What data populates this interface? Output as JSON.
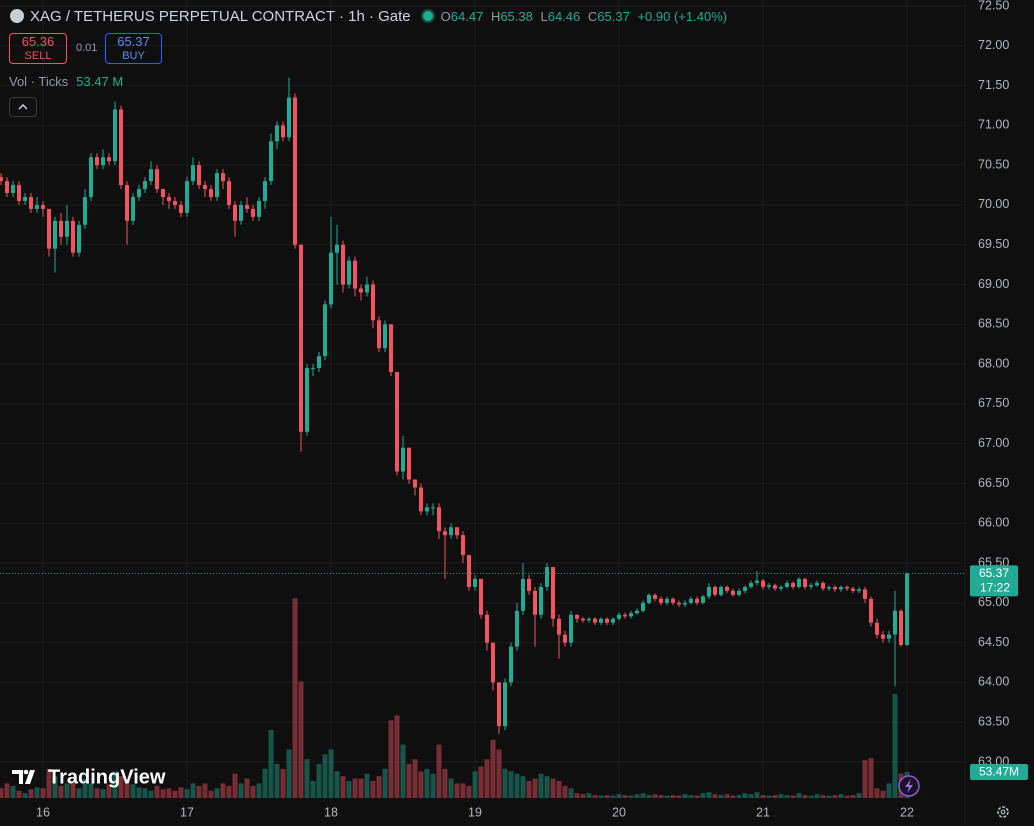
{
  "chart_data": {
    "type": "candlestick",
    "header": {
      "symbol": "XAG / TETHERUS PERPETUAL CONTRACT · 1h · Gate",
      "o_label": "O",
      "open": 64.47,
      "h_label": "H",
      "high": 65.38,
      "l_label": "L",
      "low": 64.46,
      "c_label": "C",
      "close": 65.37,
      "change": "+0.90 (+1.40%)"
    },
    "trade": {
      "sell_price": 65.36,
      "sell_label": "SELL",
      "spread": 0.01,
      "buy_price": 65.37,
      "buy_label": "BUY"
    },
    "volume_legend": {
      "name": "Vol · Ticks",
      "value": "53.47 M"
    },
    "price_tag": {
      "price": 65.37,
      "countdown": "17:22"
    },
    "volume_tag": "53.47M",
    "logo": "TradingView",
    "up_color": "#22ab94",
    "down_color": "#f7525f",
    "grid": true,
    "categories": [
      null,
      null,
      null,
      null,
      null,
      null,
      null,
      "16",
      null,
      null,
      null,
      null,
      null,
      null,
      null,
      null,
      null,
      null,
      null,
      null,
      null,
      null,
      null,
      null,
      null,
      null,
      null,
      null,
      null,
      null,
      null,
      "17",
      null,
      null,
      null,
      null,
      null,
      null,
      null,
      null,
      null,
      null,
      null,
      null,
      null,
      null,
      null,
      null,
      null,
      null,
      null,
      null,
      null,
      null,
      null,
      "18",
      null,
      null,
      null,
      null,
      null,
      null,
      null,
      null,
      null,
      null,
      null,
      null,
      null,
      null,
      null,
      null,
      null,
      null,
      null,
      null,
      null,
      null,
      null,
      "19",
      null,
      null,
      null,
      null,
      null,
      null,
      null,
      null,
      null,
      null,
      null,
      null,
      null,
      null,
      null,
      null,
      null,
      null,
      null,
      null,
      null,
      null,
      null,
      "20",
      null,
      null,
      null,
      null,
      null,
      null,
      null,
      null,
      null,
      null,
      null,
      null,
      null,
      null,
      null,
      null,
      null,
      null,
      null,
      null,
      null,
      null,
      null,
      "21",
      null,
      null,
      null,
      null,
      null,
      null,
      null,
      null,
      null,
      null,
      null,
      null,
      null,
      null,
      null,
      null,
      null,
      null,
      null,
      null,
      null,
      null,
      null,
      "22"
    ],
    "open": [
      70.35,
      70.3,
      70.15,
      70.25,
      70.05,
      70.1,
      69.95,
      70.0,
      69.95,
      69.45,
      69.8,
      69.6,
      69.8,
      69.4,
      69.75,
      70.1,
      70.6,
      70.5,
      70.6,
      70.55,
      71.2,
      70.25,
      69.8,
      70.1,
      70.2,
      70.3,
      70.45,
      70.2,
      70.1,
      70.05,
      70.0,
      69.9,
      70.3,
      70.5,
      70.25,
      70.2,
      70.1,
      70.4,
      70.3,
      70.0,
      69.8,
      70.0,
      69.95,
      69.85,
      70.05,
      70.3,
      70.8,
      71.0,
      70.85,
      71.35,
      69.5,
      67.15,
      67.95,
      67.95,
      68.1,
      68.75,
      69.4,
      69.5,
      69.0,
      69.3,
      68.95,
      68.9,
      69.0,
      68.55,
      68.2,
      68.5,
      67.9,
      66.65,
      66.95,
      66.55,
      66.45,
      66.15,
      66.2,
      66.2,
      65.9,
      65.85,
      65.95,
      65.85,
      65.6,
      65.2,
      65.3,
      64.85,
      64.5,
      64.0,
      63.45,
      64.0,
      64.45,
      64.9,
      65.3,
      65.15,
      64.85,
      65.2,
      65.45,
      64.8,
      64.6,
      64.5,
      64.85,
      64.8,
      64.78,
      64.8,
      64.75,
      64.8,
      64.75,
      64.8,
      64.85,
      64.83,
      64.87,
      64.9,
      65.0,
      65.1,
      65.05,
      65.0,
      65.05,
      65.0,
      64.98,
      65.0,
      65.05,
      65.0,
      65.08,
      65.2,
      65.1,
      65.2,
      65.15,
      65.1,
      65.15,
      65.2,
      65.25,
      65.28,
      65.2,
      65.22,
      65.18,
      65.2,
      65.25,
      65.2,
      65.3,
      65.2,
      65.22,
      65.25,
      65.18,
      65.2,
      65.17,
      65.2,
      65.18,
      65.15,
      65.17,
      65.05,
      64.75,
      64.6,
      64.55,
      64.6,
      64.9,
      64.47
    ],
    "high": [
      70.4,
      70.35,
      70.3,
      70.3,
      70.15,
      70.15,
      70.1,
      70.05,
      69.95,
      69.85,
      69.9,
      70.0,
      69.85,
      69.8,
      70.2,
      70.65,
      70.65,
      70.7,
      70.65,
      71.3,
      71.25,
      70.3,
      70.15,
      70.25,
      70.35,
      70.55,
      70.5,
      70.2,
      70.15,
      70.1,
      70.05,
      70.35,
      70.6,
      70.55,
      70.3,
      70.25,
      70.45,
      70.45,
      70.35,
      70.05,
      70.05,
      70.1,
      70.0,
      70.1,
      70.35,
      70.9,
      71.05,
      71.05,
      71.6,
      71.4,
      69.5,
      68.0,
      68.0,
      68.15,
      68.8,
      69.85,
      69.75,
      69.55,
      69.35,
      69.35,
      69.0,
      69.1,
      69.05,
      68.6,
      68.55,
      68.5,
      67.9,
      67.1,
      66.95,
      66.55,
      66.5,
      66.25,
      66.25,
      66.25,
      65.95,
      66.0,
      65.95,
      65.9,
      65.6,
      65.35,
      65.3,
      64.9,
      64.5,
      64.0,
      64.05,
      64.5,
      65.0,
      65.5,
      65.35,
      65.2,
      65.25,
      65.5,
      65.45,
      64.85,
      64.65,
      64.9,
      64.85,
      64.82,
      64.82,
      64.82,
      64.82,
      64.82,
      64.82,
      64.88,
      64.88,
      64.9,
      64.93,
      65.03,
      65.12,
      65.12,
      65.08,
      65.08,
      65.07,
      65.03,
      65.03,
      65.08,
      65.08,
      65.1,
      65.25,
      65.22,
      65.22,
      65.22,
      65.18,
      65.18,
      65.22,
      65.28,
      65.4,
      65.3,
      65.25,
      65.24,
      65.22,
      65.28,
      65.27,
      65.32,
      65.32,
      65.25,
      65.28,
      65.27,
      65.22,
      65.22,
      65.22,
      65.22,
      65.2,
      65.2,
      65.2,
      65.08,
      64.8,
      64.65,
      64.65,
      65.15,
      64.92,
      65.38
    ],
    "low": [
      70.25,
      70.1,
      70.1,
      70.0,
      70.0,
      69.9,
      69.9,
      69.85,
      69.35,
      69.15,
      69.5,
      69.5,
      69.35,
      69.35,
      69.7,
      70.05,
      70.45,
      70.45,
      70.5,
      70.5,
      70.2,
      69.5,
      69.75,
      70.05,
      70.15,
      70.25,
      70.15,
      70.0,
      69.95,
      69.95,
      69.85,
      69.85,
      70.25,
      70.2,
      70.1,
      70.05,
      70.05,
      70.2,
      69.95,
      69.6,
      69.75,
      69.9,
      69.8,
      69.8,
      69.95,
      70.25,
      70.7,
      70.8,
      70.8,
      69.45,
      66.9,
      67.1,
      67.85,
      67.9,
      68.05,
      68.7,
      69.0,
      68.9,
      68.95,
      68.85,
      68.8,
      68.85,
      68.45,
      68.15,
      68.15,
      67.85,
      66.6,
      66.55,
      66.5,
      66.35,
      66.1,
      66.1,
      66.1,
      65.8,
      65.3,
      65.8,
      65.8,
      65.5,
      65.15,
      65.15,
      64.8,
      64.4,
      63.9,
      63.35,
      63.4,
      63.95,
      64.4,
      64.85,
      65.1,
      64.45,
      64.8,
      65.15,
      64.7,
      64.3,
      64.45,
      64.45,
      64.75,
      64.75,
      64.75,
      64.72,
      64.72,
      64.72,
      64.72,
      64.78,
      64.8,
      64.8,
      64.85,
      64.88,
      64.98,
      65.02,
      64.97,
      64.97,
      64.97,
      64.95,
      64.95,
      64.98,
      64.97,
      64.98,
      65.05,
      65.08,
      65.08,
      65.12,
      65.08,
      65.08,
      65.12,
      65.18,
      65.22,
      65.17,
      65.17,
      65.15,
      65.15,
      65.18,
      65.17,
      65.18,
      65.17,
      65.17,
      65.2,
      65.15,
      65.15,
      65.14,
      65.14,
      65.15,
      65.12,
      65.12,
      65.0,
      64.7,
      64.55,
      64.5,
      64.5,
      63.95,
      64.45,
      64.46
    ],
    "close": [
      70.3,
      70.15,
      70.25,
      70.05,
      70.1,
      69.95,
      70.0,
      69.95,
      69.45,
      69.8,
      69.6,
      69.8,
      69.4,
      69.75,
      70.1,
      70.6,
      70.5,
      70.6,
      70.55,
      71.2,
      70.25,
      69.8,
      70.1,
      70.2,
      70.3,
      70.45,
      70.2,
      70.1,
      70.05,
      70.0,
      69.9,
      70.3,
      70.5,
      70.25,
      70.2,
      70.1,
      70.4,
      70.3,
      70.0,
      69.8,
      70.0,
      69.95,
      69.85,
      70.05,
      70.3,
      70.8,
      71.0,
      70.85,
      71.35,
      69.5,
      67.15,
      67.95,
      67.95,
      68.1,
      68.75,
      69.4,
      69.5,
      69.0,
      69.3,
      68.95,
      68.9,
      69.0,
      68.55,
      68.2,
      68.5,
      67.9,
      66.65,
      66.95,
      66.55,
      66.45,
      66.15,
      66.2,
      66.2,
      65.9,
      65.85,
      65.95,
      65.85,
      65.6,
      65.2,
      65.3,
      64.85,
      64.5,
      64.0,
      63.45,
      64.0,
      64.45,
      64.9,
      65.3,
      65.15,
      64.85,
      65.2,
      65.45,
      64.8,
      64.6,
      64.5,
      64.85,
      64.8,
      64.78,
      64.8,
      64.75,
      64.8,
      64.75,
      64.8,
      64.85,
      64.83,
      64.87,
      64.9,
      65.0,
      65.1,
      65.05,
      65.0,
      65.05,
      65.0,
      64.98,
      65.0,
      65.05,
      65.0,
      65.08,
      65.2,
      65.1,
      65.2,
      65.15,
      65.1,
      65.15,
      65.2,
      65.25,
      65.28,
      65.2,
      65.22,
      65.18,
      65.2,
      65.25,
      65.2,
      65.3,
      65.2,
      65.22,
      65.25,
      65.18,
      65.2,
      65.17,
      65.2,
      65.18,
      65.15,
      65.17,
      65.05,
      64.75,
      64.6,
      64.55,
      64.6,
      64.9,
      64.47,
      65.37
    ],
    "volume": [
      20,
      30,
      25,
      15,
      10,
      18,
      22,
      20,
      60,
      45,
      25,
      30,
      35,
      20,
      40,
      30,
      20,
      18,
      28,
      55,
      45,
      40,
      28,
      22,
      20,
      15,
      25,
      18,
      20,
      15,
      22,
      18,
      30,
      25,
      30,
      15,
      20,
      30,
      25,
      50,
      30,
      40,
      25,
      30,
      60,
      140,
      70,
      60,
      100,
      411,
      240,
      80,
      35,
      70,
      90,
      100,
      55,
      45,
      35,
      40,
      40,
      50,
      35,
      45,
      60,
      160,
      170,
      110,
      70,
      80,
      55,
      60,
      50,
      110,
      60,
      40,
      30,
      30,
      25,
      55,
      65,
      80,
      120,
      100,
      60,
      55,
      50,
      45,
      35,
      40,
      50,
      45,
      40,
      35,
      25,
      20,
      10,
      8,
      10,
      6,
      5,
      6,
      5,
      8,
      6,
      5,
      8,
      10,
      6,
      8,
      6,
      5,
      6,
      5,
      8,
      6,
      5,
      10,
      12,
      8,
      6,
      8,
      5,
      6,
      10,
      8,
      12,
      6,
      5,
      6,
      8,
      6,
      5,
      10,
      6,
      5,
      8,
      6,
      5,
      6,
      8,
      5,
      6,
      10,
      78,
      82,
      20,
      15,
      30,
      214,
      50,
      53.47
    ],
    "ylim": [
      63,
      72.5
    ],
    "vlim": [
      0,
      420
    ],
    "yticks": [
      {
        "value": 63,
        "label": "63.00"
      },
      {
        "value": 63.5,
        "label": "63.50"
      },
      {
        "value": 64,
        "label": "64.00"
      },
      {
        "value": 64.5,
        "label": "64.50"
      },
      {
        "value": 65,
        "label": "65.00"
      },
      {
        "value": 65.5,
        "label": "65.50"
      },
      {
        "value": 66,
        "label": "66.00"
      },
      {
        "value": 66.5,
        "label": "66.50"
      },
      {
        "value": 67,
        "label": "67.00"
      },
      {
        "value": 67.5,
        "label": "67.50"
      },
      {
        "value": 68,
        "label": "68.00"
      },
      {
        "value": 68.5,
        "label": "68.50"
      },
      {
        "value": 69,
        "label": "69.00"
      },
      {
        "value": 69.5,
        "label": "69.50"
      },
      {
        "value": 70,
        "label": "70.00"
      },
      {
        "value": 70.5,
        "label": "70.50"
      },
      {
        "value": 71,
        "label": "71.00"
      },
      {
        "value": 71.5,
        "label": "71.50"
      },
      {
        "value": 72,
        "label": "72.00"
      },
      {
        "value": 72.5,
        "label": "72.50"
      }
    ]
  }
}
